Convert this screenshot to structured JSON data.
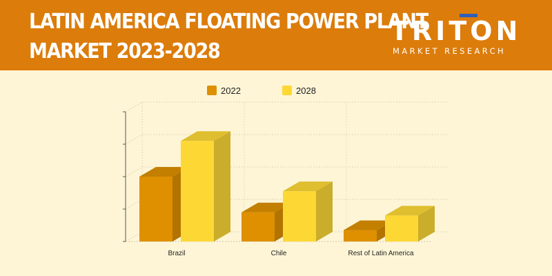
{
  "header": {
    "title_line1": "LATIN AMERICA FLOATING POWER PLANT",
    "title_line2": "MARKET 2023-2028",
    "background_color": "#dc7c0a"
  },
  "logo": {
    "name": "TRITON",
    "tagline": "MARKET RESEARCH",
    "accent_color": "#2f5fb8"
  },
  "chart_data": {
    "type": "bar",
    "style": "3d-clustered",
    "title": "",
    "xlabel": "",
    "ylabel": "",
    "categories": [
      "Brazil",
      "Chile",
      "Rest of Latin America"
    ],
    "series": [
      {
        "name": "2022",
        "color": "#de9000",
        "values": [
          2.0,
          0.9,
          0.35
        ]
      },
      {
        "name": "2028",
        "color": "#fdd835",
        "values": [
          3.1,
          1.55,
          0.8
        ]
      }
    ],
    "ylim": [
      0,
      4
    ],
    "y_ticks_labeled": false,
    "grid": true,
    "legend_position": "top-center"
  }
}
